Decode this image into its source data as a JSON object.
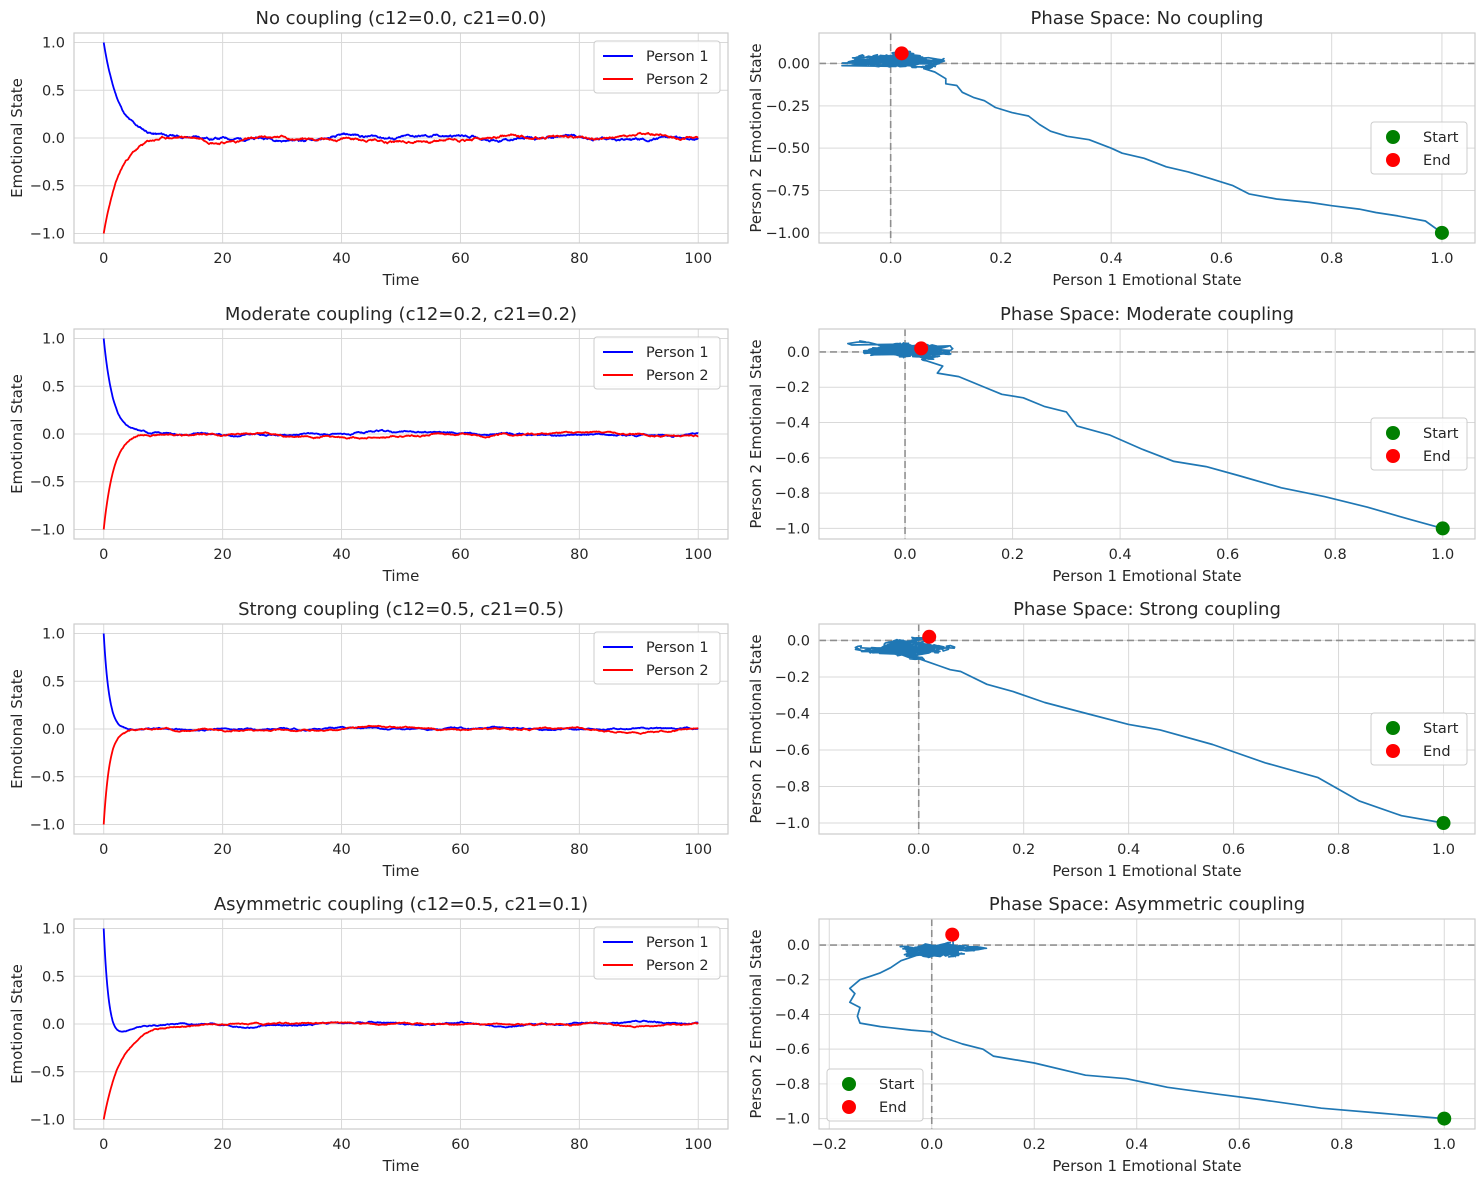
{
  "figure": {
    "background": "#ffffff",
    "grid_color": "#d9d9d9",
    "frame_color": "#cccccc"
  },
  "chart_data": [
    {
      "id": "ts-none",
      "type": "line",
      "title": "No coupling (c12=0.0, c21=0.0)",
      "xlabel": "Time",
      "ylabel": "Emotional State",
      "xlim": [
        -5,
        105
      ],
      "ylim": [
        -1.1,
        1.1
      ],
      "xticks": [
        0,
        20,
        40,
        60,
        80,
        100
      ],
      "yticks": [
        -1.0,
        -0.5,
        0.0,
        0.5,
        1.0
      ],
      "xtick_labels": [
        "0",
        "20",
        "40",
        "60",
        "80",
        "100"
      ],
      "ytick_labels": [
        "−1.0",
        "−0.5",
        "0.0",
        "0.5",
        "1.0"
      ],
      "grid": true,
      "legend_position": "upper right",
      "series": [
        {
          "name": "Person 1",
          "color": "#0000ff",
          "start": 1.0,
          "tau": 2.6,
          "seed": 11,
          "drift": 0.012,
          "amp": 0.085
        },
        {
          "name": "Person 2",
          "color": "#ff0000",
          "start": -1.0,
          "tau": 2.8,
          "seed": 23,
          "drift": 0.012,
          "amp": 0.085
        }
      ],
      "legend": [
        "Person 1",
        "Person 2"
      ]
    },
    {
      "id": "ps-none",
      "type": "line",
      "title": "Phase Space: No coupling",
      "xlabel": "Person 1 Emotional State",
      "ylabel": "Person 2 Emotional State",
      "xlim": [
        -0.13,
        1.06
      ],
      "ylim": [
        -1.06,
        0.18
      ],
      "xticks": [
        0.0,
        0.2,
        0.4,
        0.6,
        0.8,
        1.0
      ],
      "yticks": [
        -1.0,
        -0.75,
        -0.5,
        -0.25,
        0.0
      ],
      "xtick_labels": [
        "0.0",
        "0.2",
        "0.4",
        "0.6",
        "0.8",
        "1.0"
      ],
      "ytick_labels": [
        "−1.00",
        "−0.75",
        "−0.50",
        "−0.25",
        "0.00"
      ],
      "grid": true,
      "legend_position": "center right",
      "path": [
        [
          1.0,
          -1.0
        ],
        [
          0.97,
          -0.93
        ],
        [
          0.92,
          -0.9
        ],
        [
          0.88,
          -0.88
        ],
        [
          0.85,
          -0.86
        ],
        [
          0.8,
          -0.84
        ],
        [
          0.76,
          -0.82
        ],
        [
          0.7,
          -0.8
        ],
        [
          0.65,
          -0.77
        ],
        [
          0.62,
          -0.72
        ],
        [
          0.58,
          -0.68
        ],
        [
          0.54,
          -0.64
        ],
        [
          0.5,
          -0.61
        ],
        [
          0.46,
          -0.56
        ],
        [
          0.42,
          -0.53
        ],
        [
          0.4,
          -0.5
        ],
        [
          0.36,
          -0.45
        ],
        [
          0.32,
          -0.43
        ],
        [
          0.29,
          -0.4
        ],
        [
          0.27,
          -0.36
        ],
        [
          0.25,
          -0.31
        ],
        [
          0.22,
          -0.29
        ],
        [
          0.19,
          -0.26
        ],
        [
          0.17,
          -0.22
        ],
        [
          0.15,
          -0.2
        ],
        [
          0.13,
          -0.17
        ],
        [
          0.12,
          -0.13
        ],
        [
          0.1,
          -0.12
        ],
        [
          0.1,
          -0.09
        ],
        [
          0.08,
          -0.05
        ],
        [
          0.06,
          -0.03
        ]
      ],
      "cluster": {
        "cx": 0.02,
        "cy": 0.02,
        "rx": 0.08,
        "ry": 0.05,
        "spread_x": 0.15,
        "seed": 5
      },
      "start": [
        1.0,
        -1.0
      ],
      "end": [
        0.02,
        0.06
      ],
      "path_color": "#1f77b4",
      "start_color": "#008000",
      "end_color": "#ff0000",
      "legend": [
        "Start",
        "End"
      ]
    },
    {
      "id": "ts-moderate",
      "type": "line",
      "title": "Moderate coupling (c12=0.2, c21=0.2)",
      "xlabel": "Time",
      "ylabel": "Emotional State",
      "xlim": [
        -5,
        105
      ],
      "ylim": [
        -1.1,
        1.1
      ],
      "xticks": [
        0,
        20,
        40,
        60,
        80,
        100
      ],
      "yticks": [
        -1.0,
        -0.5,
        0.0,
        0.5,
        1.0
      ],
      "xtick_labels": [
        "0",
        "20",
        "40",
        "60",
        "80",
        "100"
      ],
      "ytick_labels": [
        "−1.0",
        "−0.5",
        "0.0",
        "0.5",
        "1.0"
      ],
      "grid": true,
      "legend_position": "upper right",
      "series": [
        {
          "name": "Person 1",
          "color": "#0000ff",
          "start": 1.0,
          "tau": 1.6,
          "seed": 31,
          "drift": 0.01,
          "amp": 0.065
        },
        {
          "name": "Person 2",
          "color": "#ff0000",
          "start": -1.0,
          "tau": 1.7,
          "seed": 47,
          "drift": 0.01,
          "amp": 0.065
        }
      ],
      "legend": [
        "Person 1",
        "Person 2"
      ]
    },
    {
      "id": "ps-moderate",
      "type": "line",
      "title": "Phase Space: Moderate coupling",
      "xlabel": "Person 1 Emotional State",
      "ylabel": "Person 2 Emotional State",
      "xlim": [
        -0.16,
        1.06
      ],
      "ylim": [
        -1.06,
        0.13
      ],
      "xticks": [
        0.0,
        0.2,
        0.4,
        0.6,
        0.8,
        1.0
      ],
      "yticks": [
        -1.0,
        -0.8,
        -0.6,
        -0.4,
        -0.2,
        0.0
      ],
      "xtick_labels": [
        "0.0",
        "0.2",
        "0.4",
        "0.6",
        "0.8",
        "1.0"
      ],
      "ytick_labels": [
        "−1.0",
        "−0.8",
        "−0.6",
        "−0.4",
        "−0.2",
        "0.0"
      ],
      "grid": true,
      "legend_position": "center right",
      "path": [
        [
          1.0,
          -1.0
        ],
        [
          0.94,
          -0.95
        ],
        [
          0.86,
          -0.88
        ],
        [
          0.78,
          -0.82
        ],
        [
          0.7,
          -0.77
        ],
        [
          0.62,
          -0.7
        ],
        [
          0.56,
          -0.65
        ],
        [
          0.5,
          -0.62
        ],
        [
          0.44,
          -0.55
        ],
        [
          0.38,
          -0.47
        ],
        [
          0.32,
          -0.42
        ],
        [
          0.3,
          -0.34
        ],
        [
          0.26,
          -0.31
        ],
        [
          0.22,
          -0.26
        ],
        [
          0.18,
          -0.24
        ],
        [
          0.14,
          -0.19
        ],
        [
          0.1,
          -0.14
        ],
        [
          0.06,
          -0.12
        ],
        [
          0.07,
          -0.08
        ],
        [
          0.04,
          -0.05
        ]
      ],
      "cluster": {
        "cx": 0.0,
        "cy": 0.01,
        "rx": 0.08,
        "ry": 0.04,
        "spread_x": 0.12,
        "seed": 9
      },
      "start": [
        1.0,
        -1.0
      ],
      "end": [
        0.03,
        0.02
      ],
      "path_color": "#1f77b4",
      "start_color": "#008000",
      "end_color": "#ff0000",
      "legend": [
        "Start",
        "End"
      ]
    },
    {
      "id": "ts-strong",
      "type": "line",
      "title": "Strong coupling (c12=0.5, c21=0.5)",
      "xlabel": "Time",
      "ylabel": "Emotional State",
      "xlim": [
        -5,
        105
      ],
      "ylim": [
        -1.1,
        1.1
      ],
      "xticks": [
        0,
        20,
        40,
        60,
        80,
        100
      ],
      "yticks": [
        -1.0,
        -0.5,
        0.0,
        0.5,
        1.0
      ],
      "xtick_labels": [
        "0",
        "20",
        "40",
        "60",
        "80",
        "100"
      ],
      "ytick_labels": [
        "−1.0",
        "−0.5",
        "0.0",
        "0.5",
        "1.0"
      ],
      "grid": true,
      "legend_position": "upper right",
      "series": [
        {
          "name": "Person 1",
          "color": "#0000ff",
          "start": 1.0,
          "tau": 0.9,
          "seed": 53,
          "drift": 0.009,
          "amp": 0.06
        },
        {
          "name": "Person 2",
          "color": "#ff0000",
          "start": -1.0,
          "tau": 1.0,
          "seed": 67,
          "drift": 0.009,
          "amp": 0.06
        }
      ],
      "legend": [
        "Person 1",
        "Person 2"
      ]
    },
    {
      "id": "ps-strong",
      "type": "line",
      "title": "Phase Space: Strong coupling",
      "xlabel": "Person 1 Emotional State",
      "ylabel": "Person 2 Emotional State",
      "xlim": [
        -0.19,
        1.06
      ],
      "ylim": [
        -1.06,
        0.09
      ],
      "xticks": [
        0.0,
        0.2,
        0.4,
        0.6,
        0.8,
        1.0
      ],
      "yticks": [
        -1.0,
        -0.8,
        -0.6,
        -0.4,
        -0.2,
        0.0
      ],
      "xtick_labels": [
        "0.0",
        "0.2",
        "0.4",
        "0.6",
        "0.8",
        "1.0"
      ],
      "ytick_labels": [
        "−1.0",
        "−0.8",
        "−0.6",
        "−0.4",
        "−0.2",
        "0.0"
      ],
      "grid": true,
      "legend_position": "center right",
      "path": [
        [
          1.0,
          -1.0
        ],
        [
          0.92,
          -0.96
        ],
        [
          0.84,
          -0.88
        ],
        [
          0.76,
          -0.75
        ],
        [
          0.66,
          -0.67
        ],
        [
          0.56,
          -0.57
        ],
        [
          0.46,
          -0.49
        ],
        [
          0.4,
          -0.46
        ],
        [
          0.32,
          -0.4
        ],
        [
          0.24,
          -0.34
        ],
        [
          0.18,
          -0.28
        ],
        [
          0.13,
          -0.24
        ],
        [
          0.08,
          -0.17
        ],
        [
          0.06,
          -0.16
        ],
        [
          0.04,
          -0.14
        ],
        [
          0.02,
          -0.12
        ],
        [
          0.0,
          -0.1
        ]
      ],
      "cluster": {
        "cx": -0.02,
        "cy": -0.04,
        "rx": 0.07,
        "ry": 0.05,
        "spread_x": 0.1,
        "seed": 17
      },
      "start": [
        1.0,
        -1.0
      ],
      "end": [
        0.02,
        0.02
      ],
      "path_color": "#1f77b4",
      "start_color": "#008000",
      "end_color": "#ff0000",
      "legend": [
        "Start",
        "End"
      ]
    },
    {
      "id": "ts-asym",
      "type": "line",
      "title": "Asymmetric coupling (c12=0.5, c21=0.1)",
      "xlabel": "Time",
      "ylabel": "Emotional State",
      "xlim": [
        -5,
        105
      ],
      "ylim": [
        -1.1,
        1.1
      ],
      "xticks": [
        0,
        20,
        40,
        60,
        80,
        100
      ],
      "yticks": [
        -1.0,
        -0.5,
        0.0,
        0.5,
        1.0
      ],
      "xtick_labels": [
        "0",
        "20",
        "40",
        "60",
        "80",
        "100"
      ],
      "ytick_labels": [
        "−1.0",
        "−0.5",
        "0.0",
        "0.5",
        "1.0"
      ],
      "grid": true,
      "legend_position": "upper right",
      "series": [
        {
          "name": "Person 1",
          "color": "#0000ff",
          "start": 1.0,
          "tau": 0.9,
          "seed": 71,
          "drift": 0.009,
          "amp": 0.06,
          "dip": -0.15
        },
        {
          "name": "Person 2",
          "color": "#ff0000",
          "start": -1.0,
          "tau": 3.0,
          "seed": 83,
          "drift": 0.009,
          "amp": 0.06
        }
      ],
      "legend": [
        "Person 1",
        "Person 2"
      ]
    },
    {
      "id": "ps-asym",
      "type": "line",
      "title": "Phase Space: Asymmetric coupling",
      "xlabel": "Person 1 Emotional State",
      "ylabel": "Person 2 Emotional State",
      "xlim": [
        -0.22,
        1.06
      ],
      "ylim": [
        -1.06,
        0.15
      ],
      "xticks": [
        -0.2,
        0.0,
        0.2,
        0.4,
        0.6,
        0.8,
        1.0
      ],
      "yticks": [
        -1.0,
        -0.8,
        -0.6,
        -0.4,
        -0.2,
        0.0
      ],
      "xtick_labels": [
        "−0.2",
        "0.0",
        "0.2",
        "0.4",
        "0.6",
        "0.8",
        "1.0"
      ],
      "ytick_labels": [
        "−1.0",
        "−0.8",
        "−0.6",
        "−0.4",
        "−0.2",
        "0.0"
      ],
      "grid": true,
      "legend_position": "lower left",
      "path": [
        [
          1.0,
          -1.0
        ],
        [
          0.88,
          -0.97
        ],
        [
          0.76,
          -0.94
        ],
        [
          0.64,
          -0.89
        ],
        [
          0.56,
          -0.86
        ],
        [
          0.46,
          -0.82
        ],
        [
          0.38,
          -0.77
        ],
        [
          0.3,
          -0.75
        ],
        [
          0.2,
          -0.68
        ],
        [
          0.12,
          -0.64
        ],
        [
          0.1,
          -0.6
        ],
        [
          0.06,
          -0.57
        ],
        [
          0.02,
          -0.53
        ],
        [
          0.0,
          -0.5
        ],
        [
          -0.04,
          -0.49
        ],
        [
          -0.1,
          -0.47
        ],
        [
          -0.14,
          -0.45
        ],
        [
          -0.145,
          -0.41
        ],
        [
          -0.14,
          -0.36
        ],
        [
          -0.16,
          -0.33
        ],
        [
          -0.15,
          -0.28
        ],
        [
          -0.16,
          -0.25
        ],
        [
          -0.14,
          -0.2
        ],
        [
          -0.12,
          -0.18
        ],
        [
          -0.1,
          -0.16
        ],
        [
          -0.08,
          -0.13
        ],
        [
          -0.06,
          -0.09
        ],
        [
          -0.03,
          -0.06
        ]
      ],
      "cluster": {
        "cx": 0.0,
        "cy": -0.03,
        "rx": 0.06,
        "ry": 0.05,
        "spread_x": 0.09,
        "seed": 29
      },
      "start": [
        1.0,
        -1.0
      ],
      "end": [
        0.04,
        0.06
      ],
      "path_color": "#1f77b4",
      "start_color": "#008000",
      "end_color": "#ff0000",
      "legend": [
        "Start",
        "End"
      ]
    }
  ]
}
